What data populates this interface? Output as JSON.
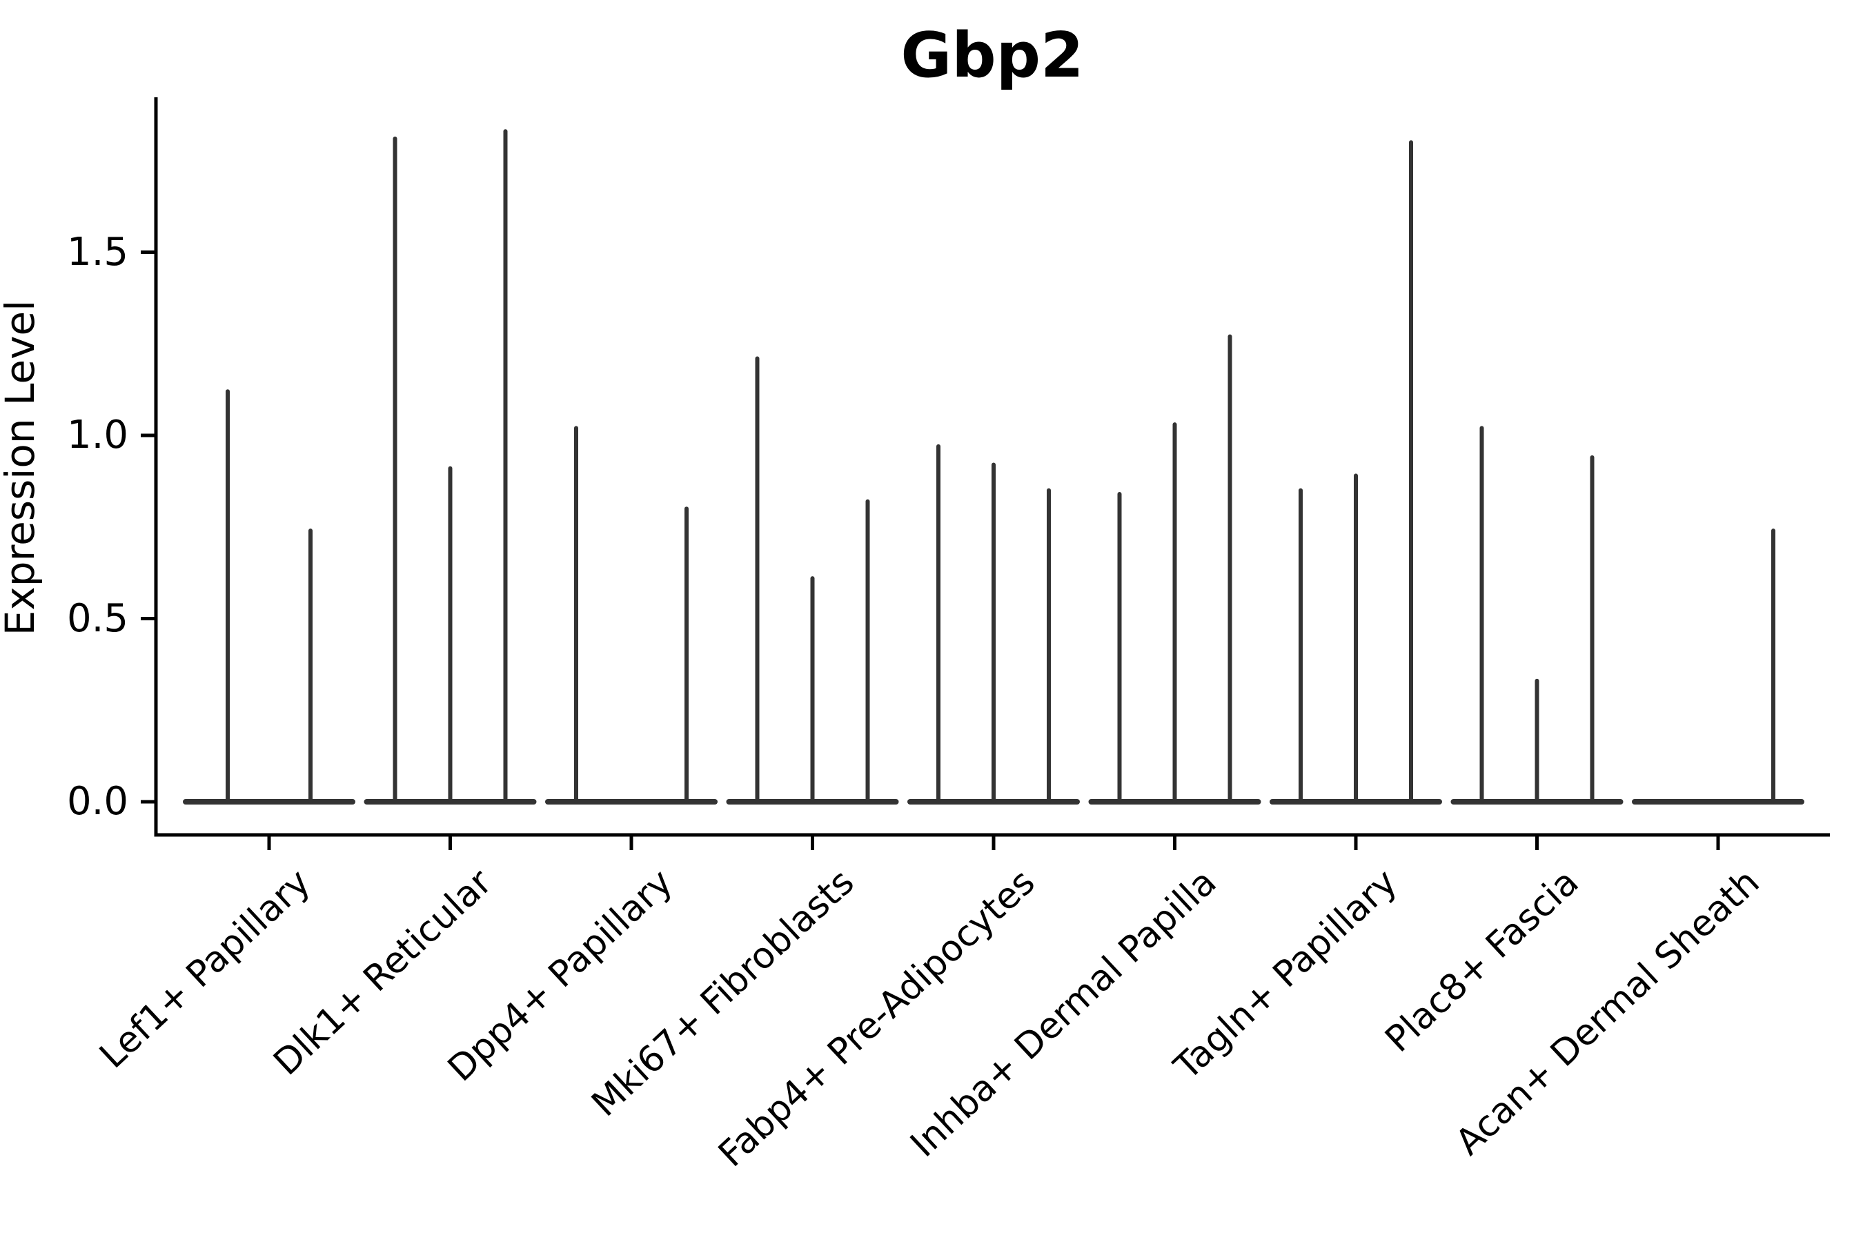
{
  "title": "Gbp2",
  "y_axis": {
    "label": "Expression Level",
    "ticks": [
      "0.0",
      "0.5",
      "1.0",
      "1.5"
    ]
  },
  "colors": {
    "violin": "#333333",
    "axis": "#000000",
    "background": "#ffffff"
  },
  "chart_data": {
    "type": "violin",
    "title": "Gbp2",
    "xlabel": "",
    "ylabel": "Expression Level",
    "ylim": [
      -0.09,
      1.92
    ],
    "yticks": [
      0.0,
      0.5,
      1.0,
      1.5
    ],
    "grid": false,
    "legend": "none",
    "description": "Single-cell gene expression violin plot; most cells at 0 giving flat bases with thin spikes up to each group's maximum expression.",
    "categories": [
      "Lef1+ Papillary",
      "Dlk1+ Reticular",
      "Dpp4+ Papillary",
      "Mki67+ Fibroblasts",
      "Fabp4+ Pre-Adipocytes",
      "Inhba+ Dermal Papilla",
      "Tagln+ Papillary",
      "Plac8+ Fascia",
      "Acan+ Dermal Sheath"
    ],
    "series": [
      {
        "category": "Lef1+ Papillary",
        "violin_baseline": 0.0,
        "violin_max": [
          1.12,
          0.74
        ]
      },
      {
        "category": "Dlk1+ Reticular",
        "violin_baseline": 0.0,
        "violin_max": [
          1.81,
          0.91,
          1.83
        ]
      },
      {
        "category": "Dpp4+ Papillary",
        "violin_baseline": 0.0,
        "violin_max": [
          1.02,
          0.0,
          0.8
        ]
      },
      {
        "category": "Mki67+ Fibroblasts",
        "violin_baseline": 0.0,
        "violin_max": [
          1.21,
          0.61,
          0.82
        ]
      },
      {
        "category": "Fabp4+ Pre-Adipocytes",
        "violin_baseline": 0.0,
        "violin_max": [
          0.97,
          0.92,
          0.85
        ]
      },
      {
        "category": "Inhba+ Dermal Papilla",
        "violin_baseline": 0.0,
        "violin_max": [
          0.84,
          1.03,
          1.27
        ]
      },
      {
        "category": "Tagln+ Papillary",
        "violin_baseline": 0.0,
        "violin_max": [
          0.85,
          0.89,
          1.8
        ]
      },
      {
        "category": "Plac8+ Fascia",
        "violin_baseline": 0.0,
        "violin_max": [
          1.02,
          0.33,
          0.94
        ]
      },
      {
        "category": "Acan+ Dermal Sheath",
        "violin_baseline": 0.0,
        "violin_max": [
          0.0,
          0.0,
          0.74
        ]
      }
    ]
  }
}
